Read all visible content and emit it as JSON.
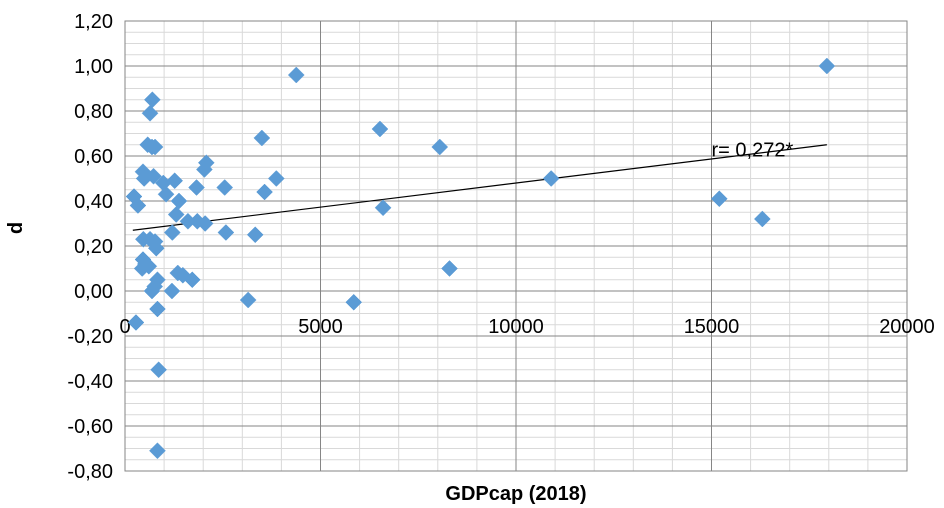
{
  "chart_data": {
    "type": "scatter",
    "xlabel": "GDPcap (2018)",
    "ylabel": "d",
    "xlim": [
      0,
      20000
    ],
    "ylim": [
      -0.8,
      1.2
    ],
    "x_ticks": [
      0,
      5000,
      10000,
      15000,
      20000
    ],
    "x_tick_labels": [
      "0",
      "5000",
      "10000",
      "15000",
      "20000"
    ],
    "y_ticks": [
      -0.8,
      -0.6,
      -0.4,
      -0.2,
      0.0,
      0.2,
      0.4,
      0.6,
      0.8,
      1.0,
      1.2
    ],
    "y_tick_labels": [
      "-0,80",
      "-0,60",
      "-0,40",
      "-0,20",
      "0,00",
      "0,20",
      "0,40",
      "0,60",
      "0,80",
      "1,00",
      "1,20"
    ],
    "grid": true,
    "marker_color": "#5b9bd5",
    "trendline": {
      "type": "linear",
      "x": [
        200,
        17950
      ],
      "y": [
        0.27,
        0.65
      ]
    },
    "annotation": {
      "text": "r= 0,272*",
      "x": 15000,
      "y": 0.63
    },
    "points": [
      {
        "x": 280,
        "y": -0.14
      },
      {
        "x": 230,
        "y": 0.42
      },
      {
        "x": 330,
        "y": 0.38
      },
      {
        "x": 460,
        "y": 0.53
      },
      {
        "x": 490,
        "y": 0.5
      },
      {
        "x": 470,
        "y": 0.23
      },
      {
        "x": 460,
        "y": 0.14
      },
      {
        "x": 440,
        "y": 0.1
      },
      {
        "x": 520,
        "y": 0.12
      },
      {
        "x": 610,
        "y": 0.11
      },
      {
        "x": 640,
        "y": 0.23
      },
      {
        "x": 580,
        "y": 0.65
      },
      {
        "x": 690,
        "y": 0.64
      },
      {
        "x": 770,
        "y": 0.64
      },
      {
        "x": 640,
        "y": 0.79
      },
      {
        "x": 700,
        "y": 0.85
      },
      {
        "x": 730,
        "y": 0.51
      },
      {
        "x": 770,
        "y": 0.22
      },
      {
        "x": 800,
        "y": 0.19
      },
      {
        "x": 690,
        "y": 0.0
      },
      {
        "x": 760,
        "y": 0.02
      },
      {
        "x": 830,
        "y": 0.05
      },
      {
        "x": 830,
        "y": -0.08
      },
      {
        "x": 860,
        "y": -0.35
      },
      {
        "x": 830,
        "y": -0.71
      },
      {
        "x": 980,
        "y": 0.48
      },
      {
        "x": 1050,
        "y": 0.43
      },
      {
        "x": 1270,
        "y": 0.49
      },
      {
        "x": 1380,
        "y": 0.4
      },
      {
        "x": 1310,
        "y": 0.34
      },
      {
        "x": 1210,
        "y": 0.26
      },
      {
        "x": 1200,
        "y": 0.0
      },
      {
        "x": 1350,
        "y": 0.08
      },
      {
        "x": 1480,
        "y": 0.07
      },
      {
        "x": 1720,
        "y": 0.05
      },
      {
        "x": 1610,
        "y": 0.31
      },
      {
        "x": 1850,
        "y": 0.31
      },
      {
        "x": 2050,
        "y": 0.3
      },
      {
        "x": 1830,
        "y": 0.46
      },
      {
        "x": 2080,
        "y": 0.57
      },
      {
        "x": 2030,
        "y": 0.54
      },
      {
        "x": 2550,
        "y": 0.46
      },
      {
        "x": 2580,
        "y": 0.26
      },
      {
        "x": 3150,
        "y": -0.04
      },
      {
        "x": 3330,
        "y": 0.25
      },
      {
        "x": 3500,
        "y": 0.68
      },
      {
        "x": 3570,
        "y": 0.44
      },
      {
        "x": 3870,
        "y": 0.5
      },
      {
        "x": 4380,
        "y": 0.96
      },
      {
        "x": 5850,
        "y": -0.05
      },
      {
        "x": 6520,
        "y": 0.72
      },
      {
        "x": 6600,
        "y": 0.37
      },
      {
        "x": 8050,
        "y": 0.64
      },
      {
        "x": 8300,
        "y": 0.1
      },
      {
        "x": 10900,
        "y": 0.5
      },
      {
        "x": 15200,
        "y": 0.41
      },
      {
        "x": 16300,
        "y": 0.32
      },
      {
        "x": 17950,
        "y": 1.0
      }
    ]
  }
}
